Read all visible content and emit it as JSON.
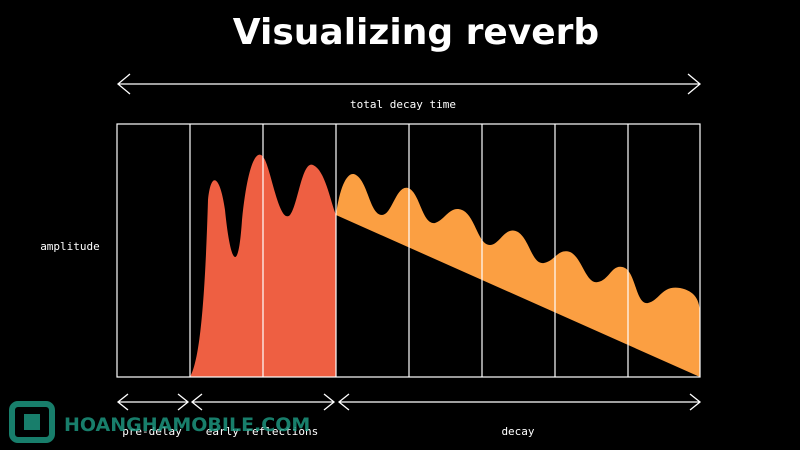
{
  "header": {
    "title": "Visualizing reverb"
  },
  "labels": {
    "total": "total decay time",
    "y_axis": "amplitude",
    "pre_delay": "pre-delay",
    "early": "early reflections",
    "decay": "decay"
  },
  "watermark": "HOANGHAMOBILE.COM"
}
